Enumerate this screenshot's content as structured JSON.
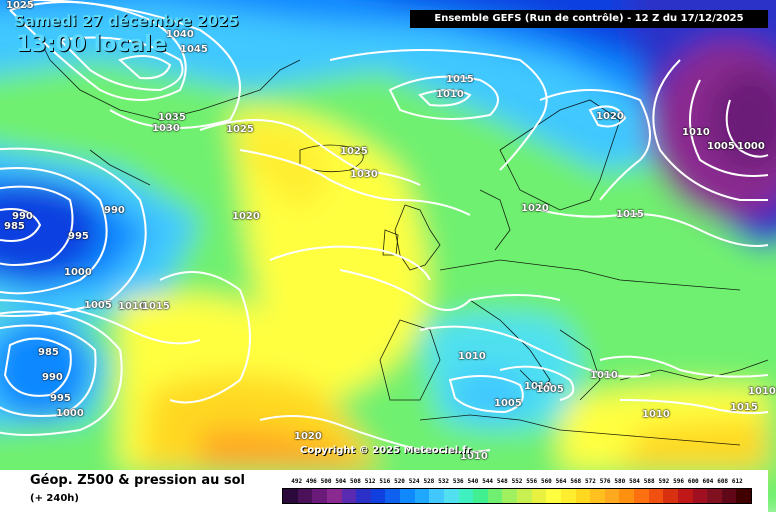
{
  "header": {
    "date": "Samedi 27 décembre 2025",
    "local_time": "13:00 locale",
    "model_run": "Ensemble GEFS  (Run de contrôle)  -  12 Z du 17/12/2025"
  },
  "footer": {
    "parameter": "Géop. Z500 & pression au sol",
    "lead_time": "(+ 240h)",
    "copyright": "Copyright © 2025 Meteociel.fr"
  },
  "color_scale": {
    "labels": [
      "492",
      "496",
      "500",
      "504",
      "508",
      "512",
      "516",
      "520",
      "524",
      "528",
      "532",
      "536",
      "540",
      "544",
      "548",
      "552",
      "556",
      "560",
      "564",
      "568",
      "572",
      "576",
      "580",
      "584",
      "588",
      "592",
      "596",
      "600",
      "604",
      "608",
      "612"
    ],
    "colors": [
      "#2a0a3a",
      "#4a1058",
      "#6a1a78",
      "#8a2a90",
      "#5a2ab0",
      "#2a30c8",
      "#1040e0",
      "#1060f0",
      "#1088ff",
      "#20a8ff",
      "#40c8ff",
      "#50e0f0",
      "#40f0c0",
      "#40f090",
      "#70f070",
      "#a0f060",
      "#c8f050",
      "#e8f040",
      "#ffff40",
      "#ffee30",
      "#ffd820",
      "#ffc020",
      "#ffa820",
      "#ff9010",
      "#ff7010",
      "#f05010",
      "#d83010",
      "#c01818",
      "#a01020",
      "#801020",
      "#600818",
      "#400000"
    ]
  },
  "isobar_labels": [
    {
      "text": "1025",
      "name": "isobar-label-1025-nw"
    },
    {
      "text": "1040",
      "name": "isobar-label-1040"
    },
    {
      "text": "1045",
      "name": "isobar-label-1045"
    },
    {
      "text": "1035",
      "name": "isobar-label-1035"
    },
    {
      "text": "1030",
      "name": "isobar-label-1030-greenland"
    },
    {
      "text": "1025",
      "name": "isobar-label-1025-greenland"
    },
    {
      "text": "1015",
      "name": "isobar-label-1015-norwegian-sea"
    },
    {
      "text": "1010",
      "name": "isobar-label-1010-norwegian-sea"
    },
    {
      "text": "1020",
      "name": "isobar-label-1020-scandinavia"
    },
    {
      "text": "1010",
      "name": "isobar-label-1010-russia"
    },
    {
      "text": "1005",
      "name": "isobar-label-1005-russia"
    },
    {
      "text": "1000",
      "name": "isobar-label-1000-russia"
    },
    {
      "text": "1025",
      "name": "isobar-label-1025-iceland"
    },
    {
      "text": "1030",
      "name": "isobar-label-1030-atlantic"
    },
    {
      "text": "1020",
      "name": "isobar-label-1020-atlantic"
    },
    {
      "text": "1020",
      "name": "isobar-label-1020-north-sea"
    },
    {
      "text": "1015",
      "name": "isobar-label-1015-baltic"
    },
    {
      "text": "990",
      "name": "isobar-label-990-labrador"
    },
    {
      "text": "985",
      "name": "isobar-label-985-labrador"
    },
    {
      "text": "990",
      "name": "isobar-label-990-labrador-east"
    },
    {
      "text": "995",
      "name": "isobar-label-995-labrador"
    },
    {
      "text": "1000",
      "name": "isobar-label-1000-labrador"
    },
    {
      "text": "1005",
      "name": "isobar-label-1005-atlantic"
    },
    {
      "text": "1010",
      "name": "isobar-label-1010-atlantic"
    },
    {
      "text": "1015",
      "name": "isobar-label-1015-atlantic"
    },
    {
      "text": "985",
      "name": "isobar-label-985-southwest"
    },
    {
      "text": "990",
      "name": "isobar-label-990-southwest"
    },
    {
      "text": "995",
      "name": "isobar-label-995-southwest"
    },
    {
      "text": "1000",
      "name": "isobar-label-1000-southwest"
    },
    {
      "text": "1010",
      "name": "isobar-label-1010-iberia"
    },
    {
      "text": "1010",
      "name": "isobar-label-1010-italy"
    },
    {
      "text": "1005",
      "name": "isobar-label-1005-italy"
    },
    {
      "text": "1010",
      "name": "isobar-label-1010-balkans"
    },
    {
      "text": "1005",
      "name": "isobar-label-1005-mediterranean"
    },
    {
      "text": "1010",
      "name": "isobar-label-1010-greece"
    },
    {
      "text": "1010",
      "name": "isobar-label-1010-turkey"
    },
    {
      "text": "1015",
      "name": "isobar-label-1015-turkey"
    },
    {
      "text": "1020",
      "name": "isobar-label-1020-azores"
    },
    {
      "text": "1010",
      "name": "isobar-label-1010-africa"
    }
  ]
}
